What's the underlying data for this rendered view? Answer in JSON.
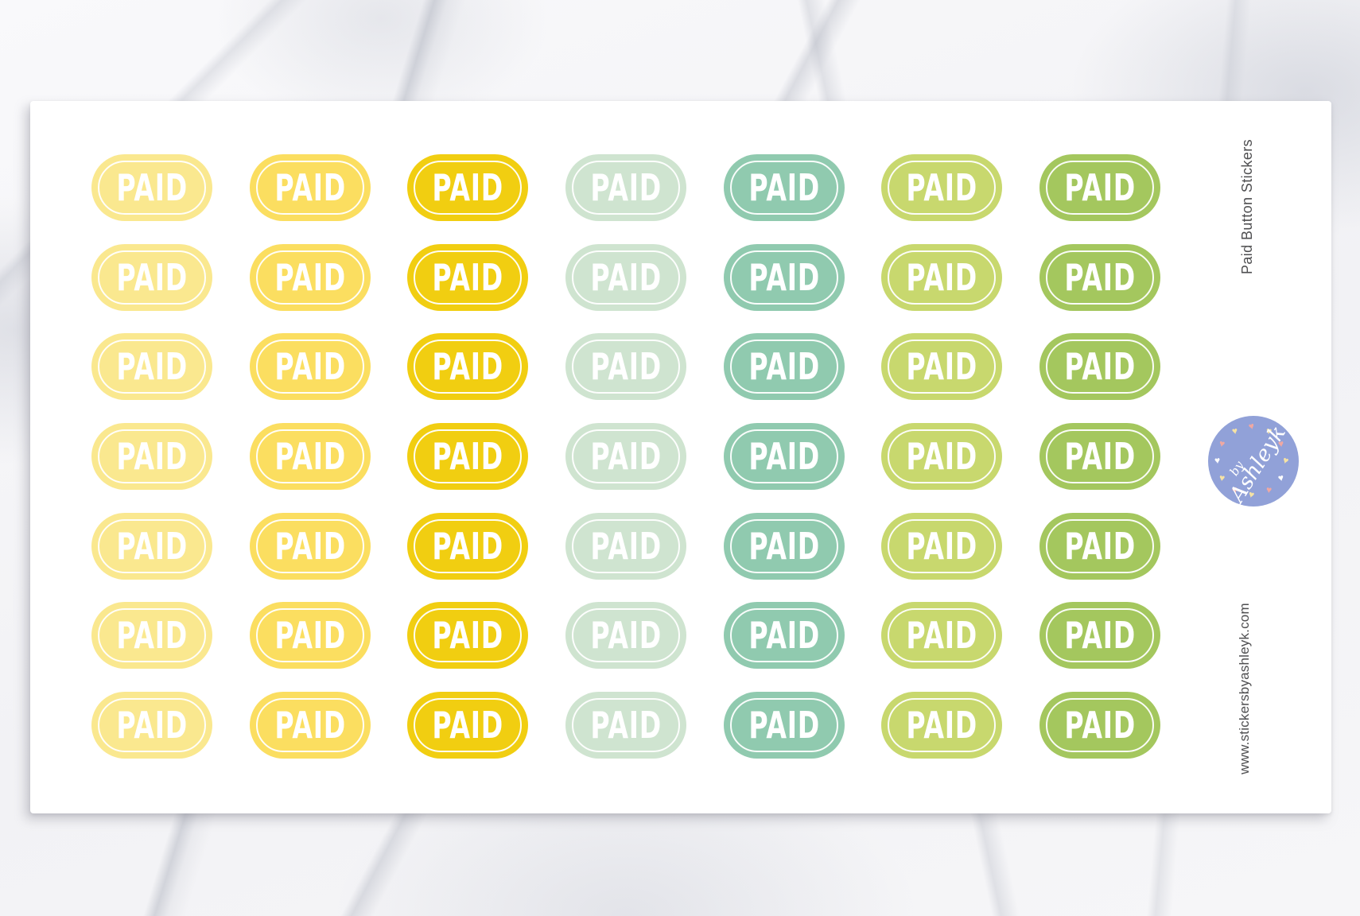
{
  "sheet": {
    "sticker_label": "PAID",
    "rows": 7,
    "columns": [
      {
        "name": "pale-yellow",
        "color": "#FAE88F"
      },
      {
        "name": "yellow",
        "color": "#FBDE60"
      },
      {
        "name": "golden-yellow",
        "color": "#F1CE11"
      },
      {
        "name": "pale-mint",
        "color": "#CFE4D0"
      },
      {
        "name": "seafoam-green",
        "color": "#90CAAF"
      },
      {
        "name": "light-green",
        "color": "#C8D86E"
      },
      {
        "name": "green",
        "color": "#A4C75E"
      }
    ]
  },
  "sidebar": {
    "title": "Paid Button Stickers",
    "website": "www.stickersbyashleyk.com"
  },
  "logo": {
    "by": "by",
    "brand": "Ashleyk",
    "circle_color": "#91A1D8",
    "heart_colors": [
      "#F6E3A4",
      "#F0A8A2",
      "#FDFDFD"
    ]
  }
}
